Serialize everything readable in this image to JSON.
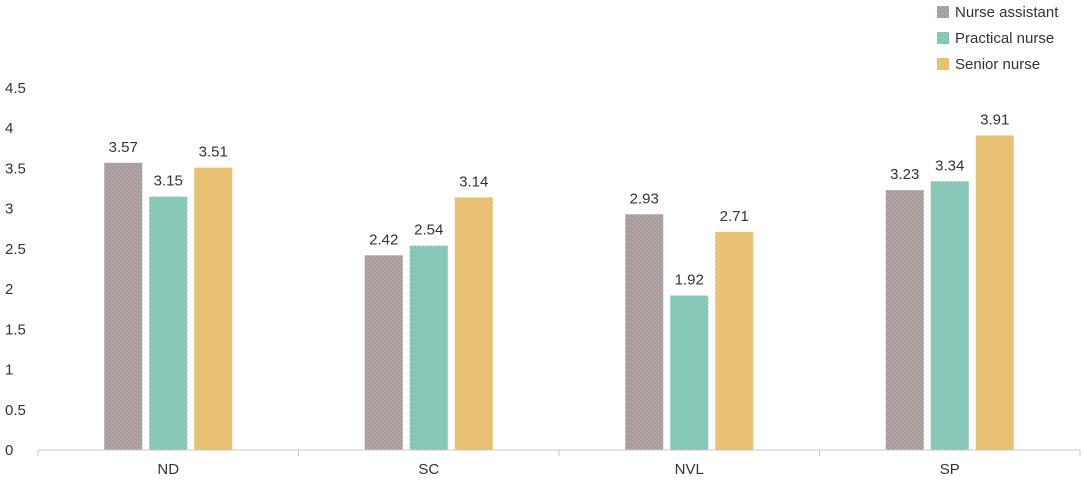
{
  "chart_data": {
    "type": "bar",
    "categories": [
      "ND",
      "SC",
      "NVL",
      "SP"
    ],
    "series": [
      {
        "name": "Nurse assistant",
        "values": [
          3.57,
          2.42,
          2.93,
          3.23
        ],
        "color": "#a89a9a"
      },
      {
        "name": "Practical nurse",
        "values": [
          3.15,
          2.54,
          1.92,
          3.34
        ],
        "color": "#80c4b4"
      },
      {
        "name": "Senior nurse",
        "values": [
          3.51,
          3.14,
          2.71,
          3.91
        ],
        "color": "#e6bd6b"
      }
    ],
    "ylim": [
      0,
      4.5
    ],
    "yticks": [
      "0",
      "0.5",
      "1",
      "1.5",
      "2",
      "2.5",
      "3",
      "3.5",
      "4",
      "4.5"
    ],
    "grid": false,
    "legend_position": "top-right",
    "title": "",
    "xlabel": "",
    "ylabel": ""
  }
}
